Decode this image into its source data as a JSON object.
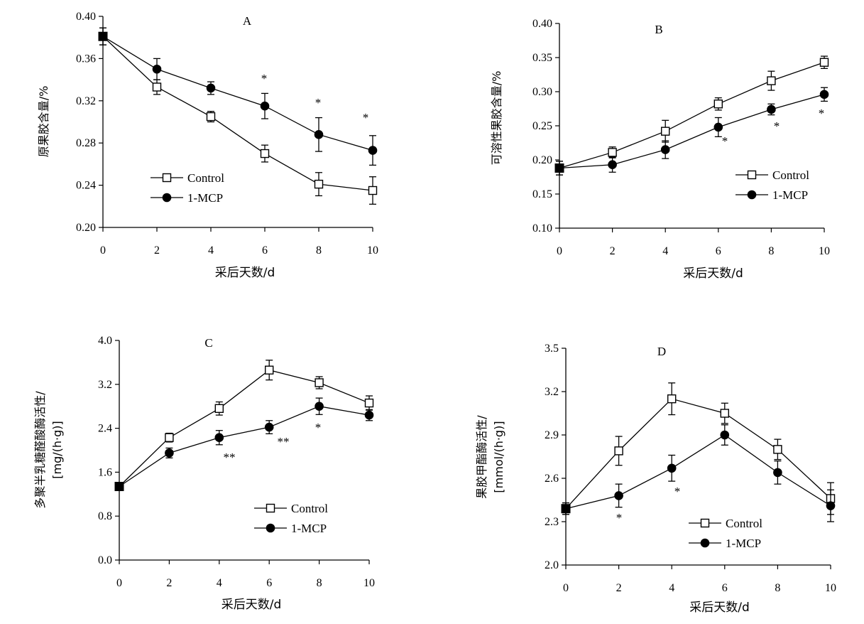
{
  "chart_data": [
    {
      "id": "A",
      "type": "line",
      "title": "A",
      "xlabel": "采后天数/d",
      "ylabel": "原果胶含量/%",
      "xlim": [
        0,
        10
      ],
      "ylim": [
        0.2,
        0.4
      ],
      "xticks": [
        0,
        2,
        4,
        6,
        8,
        10
      ],
      "yticks": [
        0.2,
        0.24,
        0.28,
        0.32,
        0.36,
        0.4
      ],
      "ytick_labels": [
        "0.20",
        "0.24",
        "0.28",
        "0.32",
        "0.36",
        "0.40"
      ],
      "legend_position": "bottom-left",
      "x": [
        0,
        2,
        4,
        6,
        8,
        10
      ],
      "series": [
        {
          "name": "Control",
          "marker": "open-square",
          "values": [
            0.381,
            0.333,
            0.305,
            0.27,
            0.241,
            0.235
          ],
          "errors": [
            0.008,
            0.007,
            0.005,
            0.008,
            0.011,
            0.013
          ]
        },
        {
          "name": "1-MCP",
          "marker": "filled-circle",
          "values": [
            0.381,
            0.35,
            0.332,
            0.315,
            0.288,
            0.273
          ],
          "errors": [
            0.008,
            0.01,
            0.006,
            0.012,
            0.016,
            0.014
          ]
        }
      ],
      "annotations": [
        {
          "x": 6,
          "y": 0.33,
          "text": "*"
        },
        {
          "x": 8,
          "y": 0.303,
          "text": "*"
        },
        {
          "x": 10,
          "y": 0.288,
          "text": "*"
        }
      ]
    },
    {
      "id": "B",
      "type": "line",
      "title": "B",
      "xlabel": "采后天数/d",
      "ylabel": "可溶性果胶含量/%",
      "xlim": [
        0,
        10
      ],
      "ylim": [
        0.1,
        0.4
      ],
      "xticks": [
        0,
        2,
        4,
        6,
        8,
        10
      ],
      "yticks": [
        0.1,
        0.15,
        0.2,
        0.25,
        0.3,
        0.35,
        0.4
      ],
      "ytick_labels": [
        "0.10",
        "0.15",
        "0.20",
        "0.25",
        "0.30",
        "0.35",
        "0.40"
      ],
      "legend_position": "bottom-right",
      "x": [
        0,
        2,
        4,
        6,
        8,
        10
      ],
      "series": [
        {
          "name": "Control",
          "marker": "open-square",
          "values": [
            0.188,
            0.211,
            0.242,
            0.282,
            0.316,
            0.343
          ],
          "errors": [
            0.01,
            0.008,
            0.016,
            0.009,
            0.014,
            0.009
          ]
        },
        {
          "name": "1-MCP",
          "marker": "filled-circle",
          "values": [
            0.188,
            0.193,
            0.215,
            0.248,
            0.274,
            0.296
          ],
          "errors": [
            0.01,
            0.011,
            0.013,
            0.014,
            0.008,
            0.01
          ]
        }
      ],
      "annotations": [
        {
          "x": 6.15,
          "y": 0.22,
          "text": "*"
        },
        {
          "x": 8.2,
          "y": 0.14,
          "text": "*"
        },
        {
          "x": 9.95,
          "y": 0.155,
          "text": "*"
        }
      ]
    },
    {
      "id": "C",
      "type": "line",
      "title": "C",
      "xlabel": "采后天数/d",
      "ylabel": "多聚半乳糖醛酸酶活性/\n[mg/(h·g)]",
      "xlim": [
        0,
        10
      ],
      "ylim": [
        0.0,
        4.0
      ],
      "xticks": [
        0,
        2,
        4,
        6,
        8,
        10
      ],
      "yticks": [
        0.0,
        0.8,
        1.6,
        2.4,
        3.2,
        4.0
      ],
      "ytick_labels": [
        "0.0",
        "0.8",
        "1.6",
        "2.4",
        "3.2",
        "4.0"
      ],
      "legend_position": "bottom-right",
      "x": [
        0,
        2,
        4,
        6,
        8,
        10
      ],
      "series": [
        {
          "name": "Control",
          "marker": "open-square",
          "values": [
            1.34,
            2.23,
            2.76,
            3.46,
            3.23,
            2.86
          ],
          "errors": [
            0.07,
            0.08,
            0.12,
            0.18,
            0.11,
            0.13
          ]
        },
        {
          "name": "1-MCP",
          "marker": "filled-circle",
          "values": [
            1.34,
            1.95,
            2.23,
            2.42,
            2.8,
            2.64
          ],
          "errors": [
            0.07,
            0.09,
            0.13,
            0.12,
            0.15,
            0.1
          ]
        }
      ],
      "annotations": [
        {
          "x": 4.2,
          "y": 1.85,
          "text": "**"
        },
        {
          "x": 6.3,
          "y": 2.05,
          "text": "**"
        },
        {
          "x": 7.95,
          "y": 2.38,
          "text": "*"
        }
      ]
    },
    {
      "id": "D",
      "type": "line",
      "title": "D",
      "xlabel": "采后天数/d",
      "ylabel": "果胶甲酯酶活性/\n[mmol/(h·g)]",
      "xlim": [
        0,
        10
      ],
      "ylim": [
        2.0,
        3.5
      ],
      "xticks": [
        0,
        2,
        4,
        6,
        8,
        10
      ],
      "yticks": [
        2.0,
        2.3,
        2.6,
        2.9,
        3.2,
        3.5
      ],
      "ytick_labels": [
        "2.0",
        "2.3",
        "2.6",
        "2.9",
        "3.2",
        "3.5"
      ],
      "legend_position": "bottom-center",
      "x": [
        0,
        2,
        4,
        6,
        8,
        10
      ],
      "series": [
        {
          "name": "Control",
          "marker": "open-square",
          "values": [
            2.39,
            2.79,
            3.15,
            3.05,
            2.8,
            2.46
          ],
          "errors": [
            0.04,
            0.1,
            0.11,
            0.07,
            0.07,
            0.11
          ]
        },
        {
          "name": "1-MCP",
          "marker": "filled-circle",
          "values": [
            2.39,
            2.48,
            2.67,
            2.9,
            2.64,
            2.41
          ],
          "errors": [
            0.04,
            0.08,
            0.09,
            0.07,
            0.08,
            0.11
          ]
        }
      ],
      "annotations": [
        {
          "x": 0.05,
          "y": 2.3,
          "text": "*"
        },
        {
          "x": 2.0,
          "y": 2.3,
          "text": "*"
        },
        {
          "x": 4.2,
          "y": 2.49,
          "text": "*"
        }
      ]
    }
  ]
}
